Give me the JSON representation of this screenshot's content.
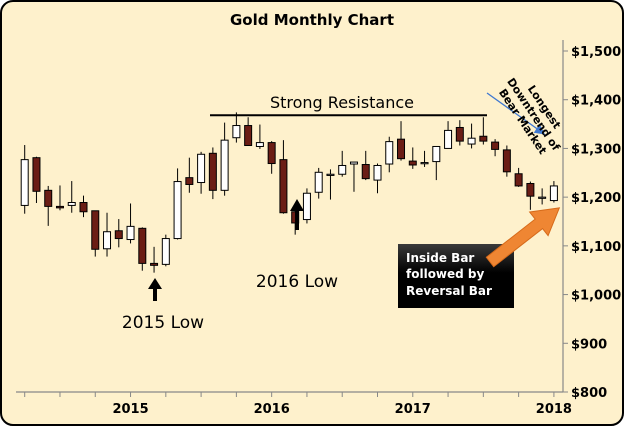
{
  "chart_data": {
    "type": "candlestick",
    "title": "Gold Monthly Chart",
    "xlabel": "",
    "ylabel": "",
    "ylim": [
      800,
      1500
    ],
    "y_ticks": [
      800,
      900,
      1000,
      1100,
      1200,
      1300,
      1400,
      1500
    ],
    "y_tick_labels": [
      "$800",
      "$900",
      "$1,000",
      "$1,100",
      "$1,200",
      "$1,300",
      "$1,400",
      "$1,500"
    ],
    "x_tick_labels": [
      {
        "index": 9,
        "label": "2015"
      },
      {
        "index": 21,
        "label": "2016"
      },
      {
        "index": 33,
        "label": "2017"
      },
      {
        "index": 45,
        "label": "2018"
      }
    ],
    "minor_tick_every": 3,
    "colors": {
      "up": "#ffffff",
      "down": "#6b1d15",
      "background": "#fef1cc"
    },
    "candles": [
      [
        1183,
        1307,
        1166,
        1277
      ],
      [
        1281,
        1283,
        1188,
        1212
      ],
      [
        1214,
        1223,
        1141,
        1181
      ],
      [
        1181,
        1224,
        1173,
        1178
      ],
      [
        1183,
        1233,
        1168,
        1189
      ],
      [
        1189,
        1203,
        1159,
        1170
      ],
      [
        1172,
        1172,
        1078,
        1093
      ],
      [
        1094,
        1168,
        1078,
        1129
      ],
      [
        1131,
        1155,
        1097,
        1115
      ],
      [
        1113,
        1187,
        1105,
        1140
      ],
      [
        1136,
        1138,
        1049,
        1064
      ],
      [
        1064,
        1098,
        1045,
        1060
      ],
      [
        1062,
        1123,
        1058,
        1115
      ],
      [
        1115,
        1259,
        1113,
        1232
      ],
      [
        1240,
        1281,
        1209,
        1226
      ],
      [
        1230,
        1293,
        1207,
        1288
      ],
      [
        1290,
        1302,
        1196,
        1214
      ],
      [
        1214,
        1353,
        1203,
        1317
      ],
      [
        1322,
        1374,
        1312,
        1347
      ],
      [
        1347,
        1364,
        1305,
        1306
      ],
      [
        1304,
        1349,
        1299,
        1312
      ],
      [
        1312,
        1315,
        1248,
        1269
      ],
      [
        1277,
        1317,
        1166,
        1168
      ],
      [
        1170,
        1186,
        1123,
        1147
      ],
      [
        1154,
        1218,
        1146,
        1208
      ],
      [
        1210,
        1260,
        1197,
        1251
      ],
      [
        1246,
        1257,
        1195,
        1247
      ],
      [
        1247,
        1295,
        1242,
        1265
      ],
      [
        1268,
        1272,
        1211,
        1272
      ],
      [
        1267,
        1295,
        1235,
        1238
      ],
      [
        1235,
        1269,
        1208,
        1265
      ],
      [
        1268,
        1324,
        1251,
        1314
      ],
      [
        1319,
        1356,
        1275,
        1279
      ],
      [
        1274,
        1302,
        1258,
        1266
      ],
      [
        1270,
        1295,
        1262,
        1271
      ],
      [
        1273,
        1304,
        1235,
        1304
      ],
      [
        1300,
        1356,
        1300,
        1337
      ],
      [
        1343,
        1358,
        1306,
        1315
      ],
      [
        1309,
        1351,
        1300,
        1321
      ],
      [
        1325,
        1364,
        1308,
        1315
      ],
      [
        1313,
        1319,
        1284,
        1298
      ],
      [
        1297,
        1306,
        1242,
        1252
      ],
      [
        1248,
        1260,
        1221,
        1223
      ],
      [
        1228,
        1232,
        1174,
        1202
      ],
      [
        1200,
        1218,
        1185,
        1200
      ],
      [
        1193,
        1233,
        1189,
        1223
      ]
    ],
    "candle_format": [
      "open",
      "high",
      "low",
      "close"
    ],
    "first_month": "2014-04",
    "annotations": {
      "resistance_label": "Strong Resistance",
      "resistance_level": 1368,
      "low_2015": "2015 Low",
      "low_2016": "2016 Low",
      "downtrend_line1": "Longest",
      "downtrend_line2": "Downtrend of",
      "downtrend_line3": "Bear Market",
      "box_line1": "Inside Bar",
      "box_line2": "followed by",
      "box_line3": "Reversal Bar"
    }
  }
}
